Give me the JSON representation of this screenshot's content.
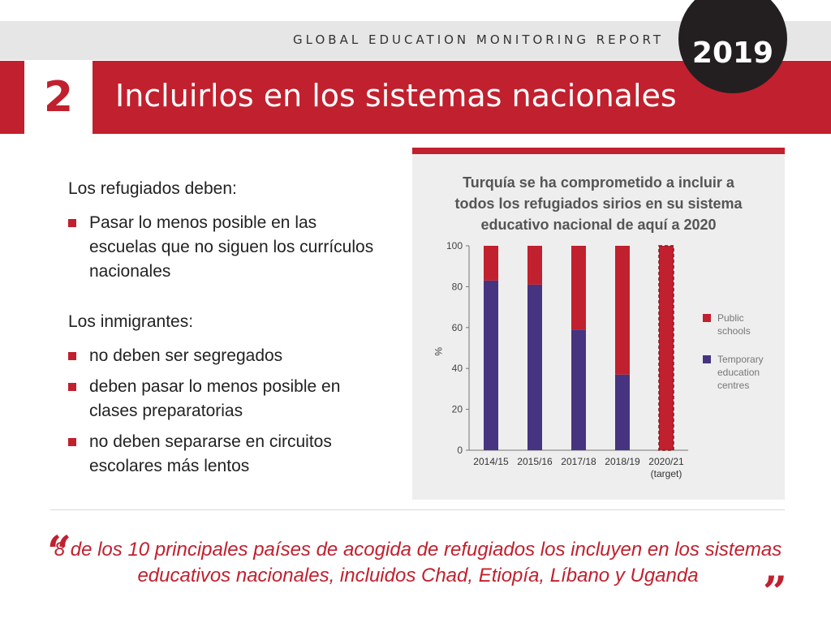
{
  "header": {
    "report_title": "GLOBAL EDUCATION MONITORING REPORT",
    "year": "2019",
    "section_number": "2",
    "title": "Incluirlos en los sistemas nacionales"
  },
  "left": {
    "refugees_lead": "Los refugiados deben:",
    "refugees_points": [
      "Pasar lo menos posible en las escuelas que no siguen los currículos nacionales"
    ],
    "migrants_lead": "Los inmigrantes:",
    "migrants_points": [
      "no deben ser segregados",
      "deben pasar lo menos posible en clases preparatorias",
      "no deben separarse en circuitos escolares más lentos"
    ]
  },
  "panel": {
    "title_lines": [
      "Turquía se ha comprometido a incluir a",
      "todos los refugiados sirios en su sistema",
      "educativo nacional de aquí a 2020"
    ]
  },
  "chart_data": {
    "type": "bar",
    "stacked": true,
    "categories": [
      "2014/15",
      "2015/16",
      "2017/18",
      "2018/19",
      "2020/21\n(target)"
    ],
    "series": [
      {
        "name": "Temporary education centres",
        "color": "#463480",
        "values": [
          83,
          81,
          59,
          37,
          0
        ]
      },
      {
        "name": "Public schools",
        "color": "#c1202e",
        "values": [
          17,
          19,
          41,
          63,
          100
        ]
      }
    ],
    "xlabel": "",
    "ylabel": "%",
    "ylim": [
      0,
      100
    ],
    "yticks": [
      0,
      20,
      40,
      60,
      80,
      100
    ],
    "legend_position": "right",
    "target_bar_dashed": true
  },
  "quote": {
    "open_mark": "“",
    "close_mark": "”",
    "text": "8 de los 10 principales países de acogida de refugiados los incluyen en los sistemas educativos nacionales, incluidos Chad, Etiopía, Líbano y Uganda"
  }
}
